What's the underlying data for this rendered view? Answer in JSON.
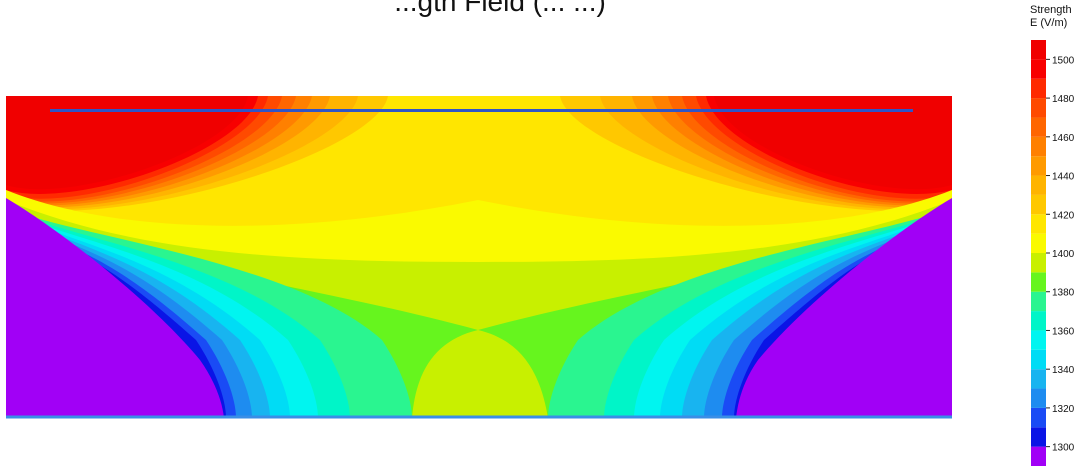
{
  "title": "...gth Field (... ...)",
  "legend": {
    "title_line1": "Strength",
    "title_line2": "E (V/m)"
  },
  "colors": {
    "electrode": "#2f55c8",
    "ground": "#3a8ee6",
    "background": "#ffffff"
  },
  "chart_data": {
    "type": "heatmap",
    "title": "",
    "quantity": "Electric field strength E (V/m)",
    "range": [
      1290,
      1510
    ],
    "colorbar_ticks": [
      1300,
      1320,
      1340,
      1360,
      1380,
      1400,
      1420,
      1440,
      1460,
      1480,
      1500
    ],
    "colorbar_levels": [
      {
        "value": 1290,
        "color": "#a100f6"
      },
      {
        "value": 1300,
        "color": "#0a14e6"
      },
      {
        "value": 1310,
        "color": "#1a4bf5"
      },
      {
        "value": 1320,
        "color": "#1e8cf0"
      },
      {
        "value": 1330,
        "color": "#18b4f0"
      },
      {
        "value": 1340,
        "color": "#00dcf5"
      },
      {
        "value": 1350,
        "color": "#00f5f0"
      },
      {
        "value": 1360,
        "color": "#00f5c8"
      },
      {
        "value": 1370,
        "color": "#2af590"
      },
      {
        "value": 1380,
        "color": "#66f51e"
      },
      {
        "value": 1390,
        "color": "#c8f000"
      },
      {
        "value": 1400,
        "color": "#fafa00"
      },
      {
        "value": 1410,
        "color": "#ffe600"
      },
      {
        "value": 1420,
        "color": "#ffc800"
      },
      {
        "value": 1430,
        "color": "#ffb400"
      },
      {
        "value": 1440,
        "color": "#ff9a00"
      },
      {
        "value": 1450,
        "color": "#ff8000"
      },
      {
        "value": 1460,
        "color": "#ff6600"
      },
      {
        "value": 1470,
        "color": "#ff4a00"
      },
      {
        "value": 1480,
        "color": "#ff2a00"
      },
      {
        "value": 1490,
        "color": "#f80000"
      },
      {
        "value": 1500,
        "color": "#f00000"
      }
    ],
    "structures": [
      {
        "name": "electrode",
        "label": ""
      },
      {
        "name": "ground plane",
        "label": ""
      }
    ],
    "grid": false,
    "legend_position": "right"
  }
}
